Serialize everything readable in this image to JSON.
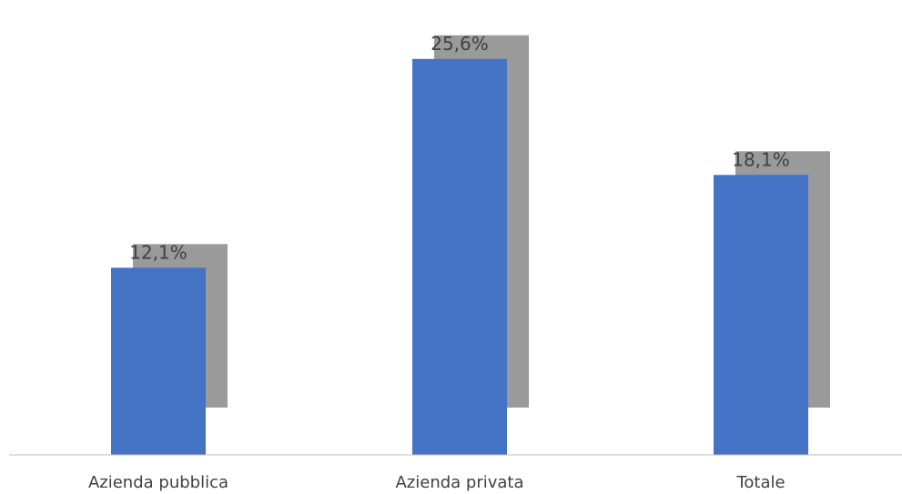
{
  "chart_data": {
    "type": "bar",
    "categories": [
      "Azienda pubblica",
      "Azienda privata",
      "Totale"
    ],
    "values": [
      12.1,
      25.6,
      18.1
    ],
    "data_labels": [
      "12,1%",
      "25,6%",
      "18,1%"
    ],
    "ylim": [
      0,
      28
    ],
    "grid": false,
    "legend": "none",
    "colors": {
      "bar": "#4472c4",
      "shadow": "#9a9a9a",
      "text": "#404040",
      "axis": "#bfbfbf"
    }
  }
}
